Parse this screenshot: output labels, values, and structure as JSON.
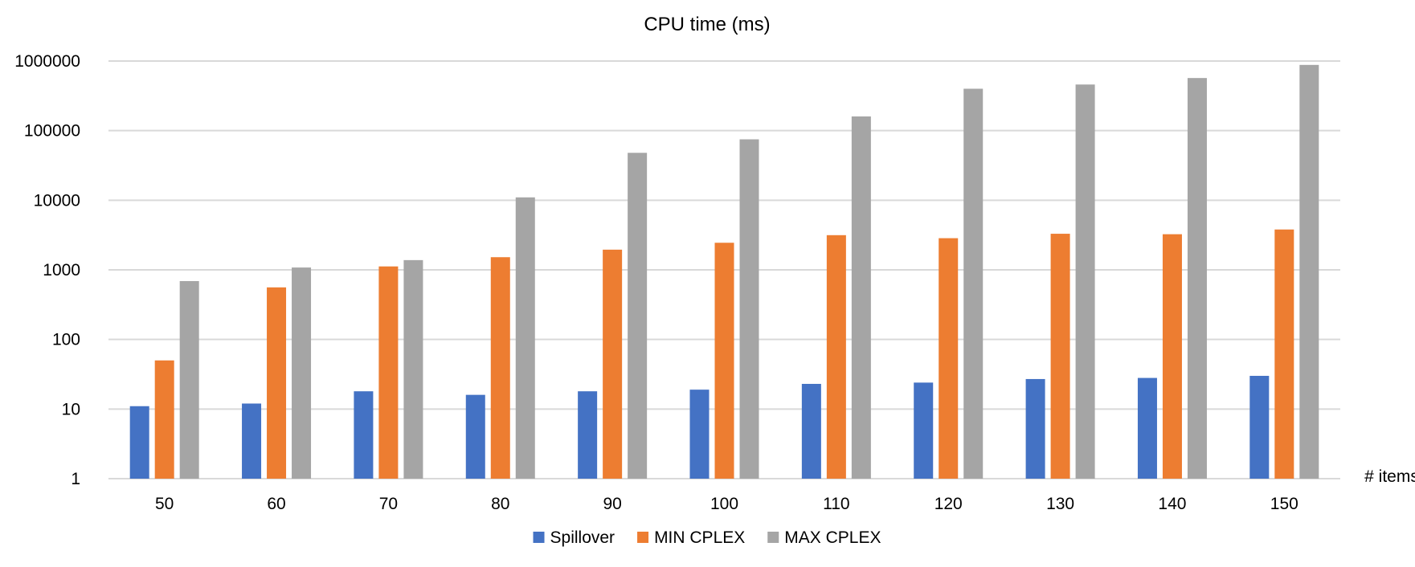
{
  "chart_data": {
    "type": "bar",
    "title": "CPU time (ms)",
    "xlabel": "# items",
    "ylabel": "",
    "yscale": "log",
    "ylim": [
      1,
      1000000
    ],
    "yticks": [
      1,
      10,
      100,
      1000,
      10000,
      100000,
      1000000
    ],
    "ytick_labels": [
      "1",
      "10",
      "100",
      "1000",
      "10000",
      "100000",
      "1000000"
    ],
    "categories": [
      "50",
      "60",
      "70",
      "80",
      "90",
      "100",
      "110",
      "120",
      "130",
      "140",
      "150"
    ],
    "grid": true,
    "legend_position": "bottom",
    "series": [
      {
        "name": "Spillover",
        "color": "#4472C4",
        "values": [
          11,
          12,
          18,
          16,
          18,
          19,
          23,
          24,
          27,
          28,
          30
        ]
      },
      {
        "name": "MIN CPLEX",
        "color": "#ED7D31",
        "values": [
          50,
          560,
          1120,
          1520,
          1950,
          2450,
          3150,
          2850,
          3300,
          3250,
          3800
        ]
      },
      {
        "name": "MAX CPLEX",
        "color": "#A5A5A5",
        "values": [
          690,
          1080,
          1380,
          11000,
          48000,
          75000,
          160000,
          400000,
          460000,
          570000,
          880000
        ]
      }
    ]
  }
}
